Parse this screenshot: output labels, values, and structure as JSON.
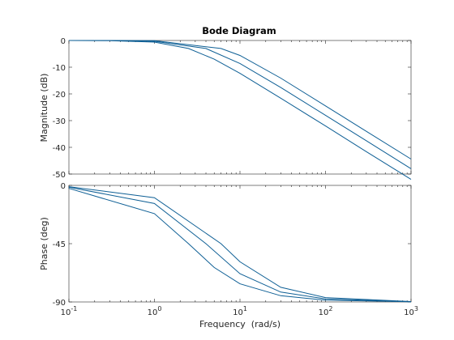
{
  "chart_data": {
    "type": "line",
    "title": "Bode Diagram",
    "xlabel": "Frequency  (rad/s)",
    "x_scale": "log",
    "xlim": [
      0.1,
      1000
    ],
    "x_ticks": [
      {
        "base": "10",
        "exp": "-1"
      },
      {
        "base": "10",
        "exp": "0"
      },
      {
        "base": "10",
        "exp": "1"
      },
      {
        "base": "10",
        "exp": "2"
      },
      {
        "base": "10",
        "exp": "3"
      }
    ],
    "grid": false,
    "colors": {
      "line": "#0e5f95",
      "axes": "#262626",
      "ticks_text": "#262626"
    },
    "panels": [
      {
        "id": "magnitude",
        "ylabel": "Magnitude (dB)",
        "ylim": [
          -50,
          0
        ],
        "y_ticks": [
          0,
          -10,
          -20,
          -30,
          -40,
          -50
        ],
        "series": [
          {
            "corner_freq": 2.5,
            "order": 1,
            "x": [
              0.1,
              0.3,
              1,
              2.5,
              5,
              10,
              30,
              100,
              300,
              1000
            ],
            "y": [
              0,
              -0.1,
              -0.6,
              -3.0,
              -7.0,
              -12.3,
              -21.6,
              -32.0,
              -41.6,
              -52.0
            ]
          },
          {
            "corner_freq": 4,
            "order": 1,
            "x": [
              0.1,
              0.3,
              1,
              4,
              10,
              30,
              100,
              300,
              1000
            ],
            "y": [
              0,
              0,
              -0.3,
              -3.0,
              -8.6,
              -17.6,
              -28.0,
              -37.5,
              -48.0
            ]
          },
          {
            "corner_freq": 6,
            "order": 1,
            "x": [
              0.1,
              0.3,
              1,
              6,
              10,
              30,
              100,
              300,
              1000
            ],
            "y": [
              0,
              0,
              -0.1,
              -3.0,
              -5.6,
              -14.1,
              -24.5,
              -34.0,
              -44.4
            ]
          }
        ]
      },
      {
        "id": "phase",
        "ylabel": "Phase (deg)",
        "ylim": [
          -90,
          0
        ],
        "y_ticks": [
          0,
          -45,
          -90
        ],
        "series": [
          {
            "corner_freq": 2.5,
            "x": [
              0.1,
              1,
              2.5,
              5,
              10,
              30,
              100,
              1000
            ],
            "y": [
              -2.3,
              -21.8,
              -45,
              -63.4,
              -76.0,
              -85.2,
              -88.6,
              -89.9
            ]
          },
          {
            "corner_freq": 4,
            "x": [
              0.1,
              1,
              4,
              10,
              30,
              100,
              1000
            ],
            "y": [
              -1.4,
              -14.0,
              -45,
              -68.2,
              -82.4,
              -87.7,
              -89.8
            ]
          },
          {
            "corner_freq": 6,
            "x": [
              0.1,
              1,
              6,
              10,
              30,
              100,
              1000
            ],
            "y": [
              -1.0,
              -9.5,
              -45,
              -59.0,
              -78.7,
              -86.6,
              -89.7
            ]
          }
        ]
      }
    ]
  }
}
